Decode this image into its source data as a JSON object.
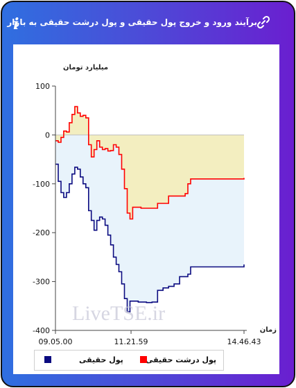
{
  "header": {
    "title": "برآیند ورود و خروج پول حقیقی و پول درشت حقیقی به بازار",
    "info_icon": "i"
  },
  "watermark": "LiveTSE.ir",
  "chart_data": {
    "type": "line",
    "ylabel": "میلیارد تومان",
    "xlabel": "زمان",
    "ylim": [
      -400,
      100
    ],
    "yticks": [
      100,
      0,
      -100,
      -200,
      -300,
      -400
    ],
    "xticks": [
      "09.05.00",
      "11.21.59",
      "14.46.43"
    ],
    "x_range": [
      "09.05.00",
      "14.46.43"
    ],
    "grid": false,
    "legend_position": "bottom",
    "series": [
      {
        "name": "پول حقیقی",
        "color": "#0a0a80",
        "fill": "#e8f3fb",
        "values": [
          [
            "09.05.00",
            -60
          ],
          [
            "09.10.00",
            -95
          ],
          [
            "09.15.00",
            -118
          ],
          [
            "09.20.00",
            -128
          ],
          [
            "09.25.00",
            -118
          ],
          [
            "09.30.00",
            -100
          ],
          [
            "09.35.00",
            -80
          ],
          [
            "09.40.00",
            -66
          ],
          [
            "09.45.00",
            -70
          ],
          [
            "09.50.00",
            -86
          ],
          [
            "09.55.00",
            -100
          ],
          [
            "10.00.00",
            -108
          ],
          [
            "10.05.00",
            -155
          ],
          [
            "10.10.00",
            -175
          ],
          [
            "10.15.00",
            -195
          ],
          [
            "10.20.00",
            -175
          ],
          [
            "10.25.00",
            -168
          ],
          [
            "10.30.00",
            -172
          ],
          [
            "10.35.00",
            -185
          ],
          [
            "10.40.00",
            -205
          ],
          [
            "10.45.00",
            -225
          ],
          [
            "10.50.00",
            -250
          ],
          [
            "10.55.00",
            -265
          ],
          [
            "11.00.00",
            -280
          ],
          [
            "11.05.00",
            -305
          ],
          [
            "11.10.00",
            -335
          ],
          [
            "11.15.00",
            -362
          ],
          [
            "11.20.00",
            -340
          ],
          [
            "11.35.00",
            -342
          ],
          [
            "11.50.00",
            -343
          ],
          [
            "12.00.00",
            -342
          ],
          [
            "12.10.00",
            -318
          ],
          [
            "12.20.00",
            -313
          ],
          [
            "12.30.00",
            -310
          ],
          [
            "12.40.00",
            -305
          ],
          [
            "12.50.00",
            -290
          ],
          [
            "13.05.00",
            -285
          ],
          [
            "13.10.00",
            -270
          ],
          [
            "14.46.43",
            -265
          ]
        ]
      },
      {
        "name": "پول درشت حقیقی",
        "color": "#ff0000",
        "fill": "#f3eec0",
        "values": [
          [
            "09.05.00",
            -12
          ],
          [
            "09.10.00",
            -15
          ],
          [
            "09.15.00",
            -5
          ],
          [
            "09.20.00",
            8
          ],
          [
            "09.25.00",
            6
          ],
          [
            "09.30.00",
            25
          ],
          [
            "09.35.00",
            42
          ],
          [
            "09.40.00",
            58
          ],
          [
            "09.45.00",
            45
          ],
          [
            "09.50.00",
            38
          ],
          [
            "09.55.00",
            40
          ],
          [
            "10.00.00",
            35
          ],
          [
            "10.05.00",
            -20
          ],
          [
            "10.10.00",
            -45
          ],
          [
            "10.15.00",
            -30
          ],
          [
            "10.20.00",
            -12
          ],
          [
            "10.25.00",
            -25
          ],
          [
            "10.30.00",
            -30
          ],
          [
            "10.35.00",
            -28
          ],
          [
            "10.40.00",
            -33
          ],
          [
            "10.45.00",
            -32
          ],
          [
            "10.50.00",
            -20
          ],
          [
            "10.55.00",
            -25
          ],
          [
            "11.00.00",
            -40
          ],
          [
            "11.05.00",
            -70
          ],
          [
            "11.10.00",
            -110
          ],
          [
            "11.15.00",
            -160
          ],
          [
            "11.20.00",
            -172
          ],
          [
            "11.25.00",
            -148
          ],
          [
            "11.40.00",
            -150
          ],
          [
            "12.00.00",
            -150
          ],
          [
            "12.10.00",
            -140
          ],
          [
            "12.30.00",
            -125
          ],
          [
            "13.00.00",
            -120
          ],
          [
            "13.05.00",
            -100
          ],
          [
            "13.10.00",
            -90
          ],
          [
            "14.46.43",
            -88
          ]
        ]
      }
    ]
  }
}
